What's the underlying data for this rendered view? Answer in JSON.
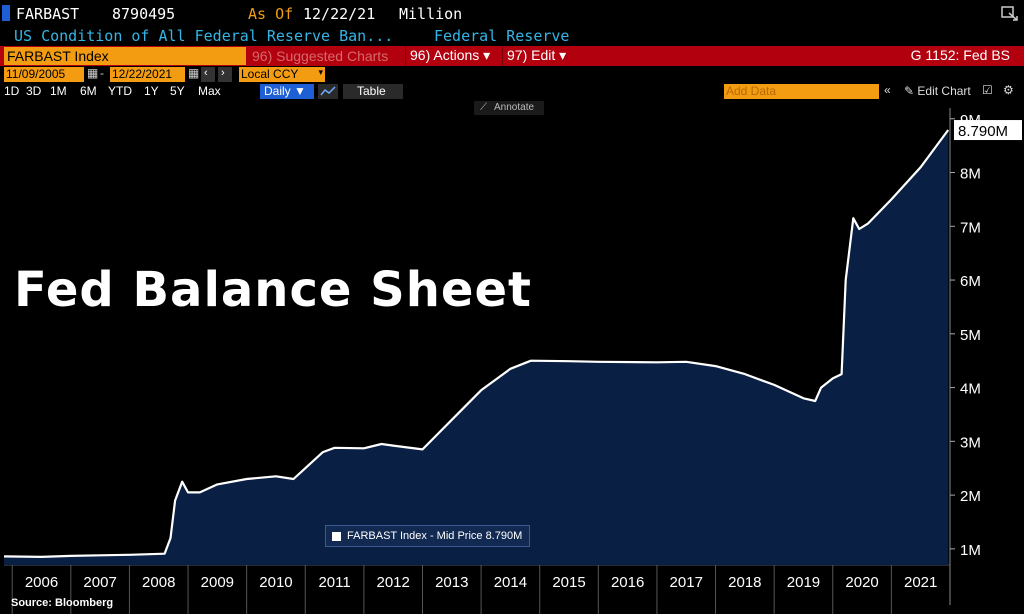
{
  "header": {
    "ticker": "FARBAST",
    "value": "8790495",
    "as_of_label": "As Of",
    "as_of_date": "12/22/21",
    "unit": "Million",
    "description": "US Condition of All Federal Reserve Ban...",
    "source_name": "Federal Reserve"
  },
  "toolbar": {
    "security": "FARBAST Index",
    "suggested_charts": "96) Suggested Charts",
    "actions": "96) Actions ▾",
    "edit": "97) Edit ▾",
    "chart_id": "G 1152: Fed BS"
  },
  "range": {
    "start_date": "11/09/2005",
    "end_date": "12/22/2021",
    "currency": "Local CCY"
  },
  "periods": [
    "1D",
    "3D",
    "1M",
    "6M",
    "YTD",
    "1Y",
    "5Y",
    "Max"
  ],
  "frequency": "Daily ▼",
  "table_label": "Table",
  "add_data_placeholder": "Add Data",
  "edit_chart_label": "Edit Chart",
  "annotate_label": "Annotate",
  "overlay_title": "Fed Balance Sheet",
  "legend": "FARBAST Index - Mid Price 8.790M",
  "last_value_label": "8.790M",
  "source": "Source: Bloomberg",
  "colors": {
    "accent_orange": "#f39c12",
    "toolbar_red": "#b3000f",
    "area_fill": "#0a1f44",
    "line": "#ffffff",
    "cyan_text": "#33b5e5"
  },
  "chart_data": {
    "type": "area",
    "title": "",
    "xlabel": "",
    "ylabel": "",
    "x_ticks": [
      "2006",
      "2007",
      "2008",
      "2009",
      "2010",
      "2011",
      "2012",
      "2013",
      "2014",
      "2015",
      "2016",
      "2017",
      "2018",
      "2019",
      "2020",
      "2021"
    ],
    "y_ticks": [
      "1M",
      "2M",
      "3M",
      "4M",
      "5M",
      "6M",
      "7M",
      "8M",
      "9M"
    ],
    "ylim": [
      0.7,
      9.2
    ],
    "xlim": [
      2005.86,
      2022.0
    ],
    "grid": false,
    "legend_position": "bottom-center",
    "series": [
      {
        "name": "FARBAST Index - Mid Price",
        "x": [
          2005.86,
          2006.5,
          2007.0,
          2007.5,
          2008.0,
          2008.6,
          2008.7,
          2008.78,
          2008.9,
          2009.0,
          2009.2,
          2009.5,
          2010.0,
          2010.5,
          2010.8,
          2011.0,
          2011.3,
          2011.5,
          2012.0,
          2012.3,
          2012.5,
          2013.0,
          2013.5,
          2014.0,
          2014.5,
          2014.85,
          2015.5,
          2016.0,
          2017.0,
          2017.5,
          2018.0,
          2018.5,
          2019.0,
          2019.5,
          2019.7,
          2019.8,
          2020.0,
          2020.15,
          2020.22,
          2020.35,
          2020.45,
          2020.6,
          2021.0,
          2021.5,
          2021.97
        ],
        "y": [
          0.86,
          0.85,
          0.87,
          0.88,
          0.89,
          0.91,
          1.2,
          1.9,
          2.25,
          2.05,
          2.05,
          2.2,
          2.3,
          2.35,
          2.3,
          2.5,
          2.8,
          2.88,
          2.87,
          2.95,
          2.92,
          2.85,
          3.4,
          3.95,
          4.35,
          4.5,
          4.49,
          4.48,
          4.47,
          4.48,
          4.4,
          4.25,
          4.05,
          3.8,
          3.75,
          4.0,
          4.17,
          4.25,
          6.0,
          7.15,
          6.95,
          7.05,
          7.5,
          8.1,
          8.79
        ]
      }
    ]
  }
}
